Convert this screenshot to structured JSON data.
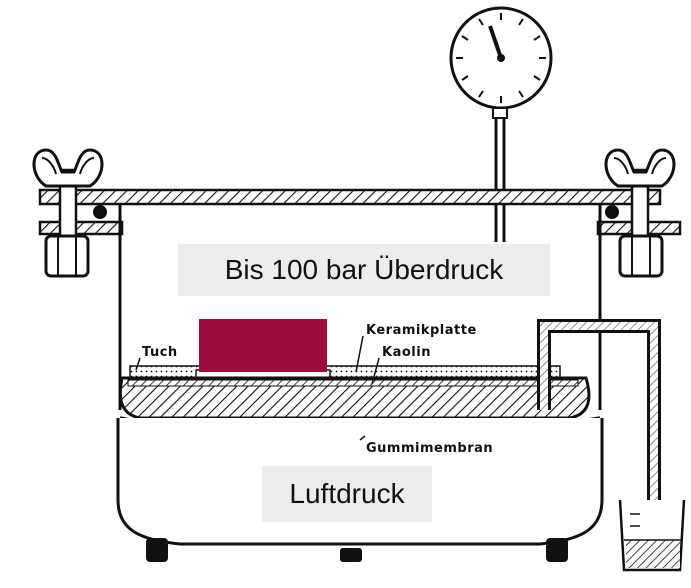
{
  "labels": {
    "pressure": "Bis 100 bar Überdruck",
    "air_pressure": "Luftdruck",
    "cloth": "Tuch",
    "ceramic_plate": "Keramikplatte",
    "kaolin": "Kaolin",
    "rubber_membrane": "Gummimembran"
  },
  "colors": {
    "sample_block": "#9b0d3a",
    "line": "#111111",
    "label_background": "#ececec"
  },
  "icons": {
    "pressure_gauge": "gauge-icon",
    "wing_nut": "wing-nut-icon",
    "burette": "beaker-icon"
  }
}
